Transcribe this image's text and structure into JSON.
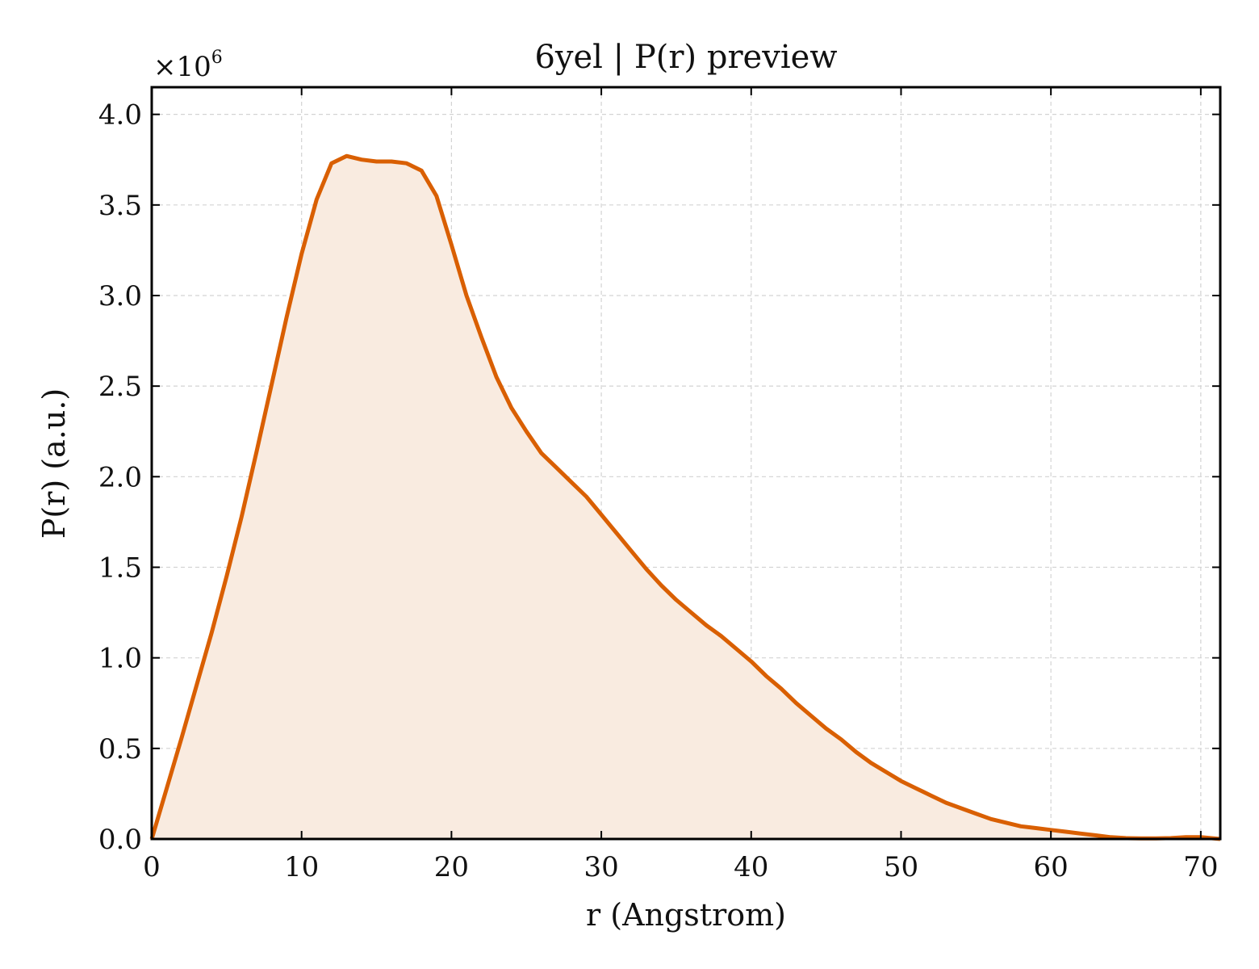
{
  "chart_data": {
    "type": "area",
    "title": "6yel | P(r) preview",
    "xlabel": "r (Angstrom)",
    "ylabel": "P(r) (a.u.)",
    "y_multiplier": {
      "base": "×10",
      "exponent": "6"
    },
    "xlim": [
      0,
      71.3
    ],
    "ylim": [
      0,
      4.15
    ],
    "x_ticks": [
      0,
      10,
      20,
      30,
      40,
      50,
      60,
      70
    ],
    "x_tick_labels": [
      "0",
      "10",
      "20",
      "30",
      "40",
      "50",
      "60",
      "70"
    ],
    "y_ticks": [
      0.0,
      0.5,
      1.0,
      1.5,
      2.0,
      2.5,
      3.0,
      3.5,
      4.0
    ],
    "y_tick_labels": [
      "0.0",
      "0.5",
      "1.0",
      "1.5",
      "2.0",
      "2.5",
      "3.0",
      "3.5",
      "4.0"
    ],
    "grid": true,
    "legend": "none",
    "line_color": "#d95f02",
    "fill_color": "#f9ebe0",
    "series": [
      {
        "x": [
          0,
          1,
          2,
          3,
          4,
          5,
          6,
          7,
          8,
          9,
          10,
          11,
          12,
          13,
          14,
          15,
          16,
          17,
          18,
          19,
          20,
          21,
          22,
          23,
          24,
          25,
          26,
          27,
          28,
          29,
          30,
          31,
          32,
          33,
          34,
          35,
          36,
          37,
          38,
          39,
          40,
          41,
          42,
          43,
          44,
          45,
          46,
          47,
          48,
          49,
          50,
          51,
          52,
          53,
          54,
          55,
          56,
          57,
          58,
          59,
          60,
          61,
          62,
          63,
          64,
          65,
          66,
          67,
          68,
          69,
          70,
          71.3
        ],
        "y": [
          0.0,
          0.28,
          0.56,
          0.85,
          1.14,
          1.45,
          1.78,
          2.14,
          2.51,
          2.88,
          3.23,
          3.53,
          3.73,
          3.77,
          3.75,
          3.74,
          3.74,
          3.73,
          3.69,
          3.55,
          3.28,
          3.0,
          2.77,
          2.55,
          2.38,
          2.25,
          2.13,
          2.05,
          1.97,
          1.89,
          1.79,
          1.69,
          1.59,
          1.49,
          1.4,
          1.32,
          1.25,
          1.18,
          1.12,
          1.05,
          0.98,
          0.9,
          0.83,
          0.75,
          0.68,
          0.61,
          0.55,
          0.48,
          0.42,
          0.37,
          0.32,
          0.28,
          0.24,
          0.2,
          0.17,
          0.14,
          0.11,
          0.09,
          0.07,
          0.06,
          0.05,
          0.04,
          0.03,
          0.02,
          0.01,
          0.005,
          0.003,
          0.003,
          0.005,
          0.01,
          0.01,
          0.0
        ]
      }
    ]
  }
}
